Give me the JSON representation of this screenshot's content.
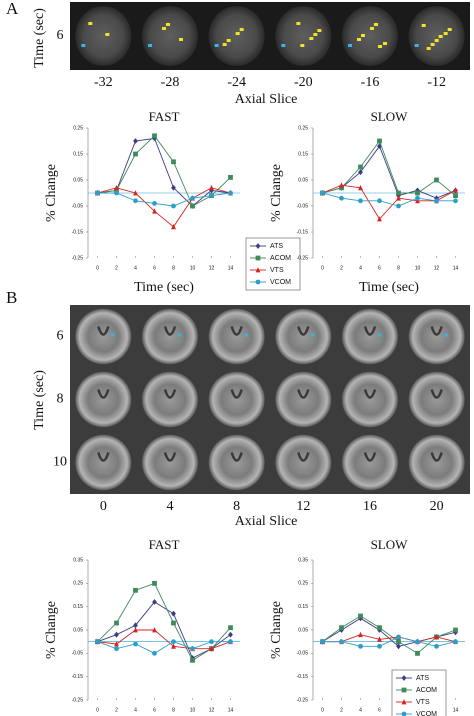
{
  "figure": {
    "panel_a": {
      "label": "A",
      "time_axis_label": "Time (sec)",
      "rows": [
        "6"
      ],
      "slices": [
        "-32",
        "-28",
        "-24",
        "-20",
        "-16",
        "-12"
      ],
      "slice_axis_label": "Axial Slice"
    },
    "panel_b": {
      "label": "B",
      "time_axis_label": "Time (sec)",
      "rows": [
        "6",
        "8",
        "10"
      ],
      "slices": [
        "0",
        "4",
        "8",
        "12",
        "16",
        "20"
      ],
      "slice_axis_label": "Axial Slice"
    }
  },
  "chart_data": [
    {
      "type": "line",
      "title": "FAST",
      "xlabel": "Time (sec)",
      "ylabel": "% Change",
      "x": [
        0,
        2,
        4,
        6,
        8,
        10,
        12,
        14
      ],
      "xlim": [
        -1,
        15
      ],
      "xticks": [
        0,
        2,
        4,
        6,
        8,
        10,
        12,
        14
      ],
      "ylim": [
        -0.25,
        0.25
      ],
      "yticks": [
        -0.25,
        -0.15,
        -0.05,
        0.05,
        0.15,
        0.25
      ],
      "legend": true,
      "series": [
        {
          "name": "ATS",
          "color": "#3d3a86",
          "marker": "diamond",
          "values": [
            0,
            0.01,
            0.2,
            0.21,
            0.02,
            -0.05,
            0.01,
            0
          ]
        },
        {
          "name": "ACOM",
          "color": "#3f8a5b",
          "marker": "square",
          "values": [
            0,
            0.01,
            0.15,
            0.22,
            0.12,
            -0.05,
            -0.01,
            0.06
          ]
        },
        {
          "name": "VTS",
          "color": "#d8231e",
          "marker": "triangle",
          "values": [
            0,
            0.02,
            0,
            -0.07,
            -0.13,
            -0.02,
            0.02,
            0
          ]
        },
        {
          "name": "VCOM",
          "color": "#2a9fc9",
          "marker": "circle",
          "values": [
            0,
            0,
            -0.03,
            -0.04,
            -0.05,
            -0.02,
            -0.01,
            0
          ]
        }
      ]
    },
    {
      "type": "line",
      "title": "SLOW",
      "xlabel": "Time (sec)",
      "ylabel": "% Change",
      "x": [
        0,
        2,
        4,
        6,
        8,
        10,
        12,
        14
      ],
      "xlim": [
        -1,
        15
      ],
      "xticks": [
        0,
        2,
        4,
        6,
        8,
        10,
        12,
        14
      ],
      "ylim": [
        -0.25,
        0.25
      ],
      "yticks": [
        -0.25,
        -0.15,
        -0.05,
        0.05,
        0.15,
        0.25
      ],
      "legend": false,
      "series": [
        {
          "name": "ATS",
          "color": "#3d3a86",
          "marker": "diamond",
          "values": [
            0,
            0.02,
            0.08,
            0.18,
            -0.01,
            0.01,
            -0.02,
            0.01
          ]
        },
        {
          "name": "ACOM",
          "color": "#3f8a5b",
          "marker": "square",
          "values": [
            0,
            0.02,
            0.1,
            0.2,
            0,
            0,
            0.05,
            -0.01
          ]
        },
        {
          "name": "VTS",
          "color": "#d8231e",
          "marker": "triangle",
          "values": [
            0,
            0.03,
            0.02,
            -0.1,
            -0.02,
            -0.03,
            -0.03,
            0.01
          ]
        },
        {
          "name": "VCOM",
          "color": "#2a9fc9",
          "marker": "circle",
          "values": [
            0,
            -0.02,
            -0.03,
            -0.03,
            -0.05,
            -0.02,
            -0.03,
            -0.03
          ]
        }
      ]
    },
    {
      "type": "line",
      "title": "FAST",
      "ylabel": "% Change",
      "x": [
        0,
        2,
        4,
        6,
        8,
        10,
        12,
        14
      ],
      "xlim": [
        -1,
        15
      ],
      "xticks": [
        0,
        2,
        4,
        6,
        8,
        10,
        12,
        14
      ],
      "ylim": [
        -0.25,
        0.35
      ],
      "yticks": [
        -0.25,
        -0.15,
        -0.05,
        0.05,
        0.15,
        0.25,
        0.35
      ],
      "legend": false,
      "series": [
        {
          "name": "ATS",
          "color": "#3d3a86",
          "marker": "diamond",
          "values": [
            0,
            0.03,
            0.07,
            0.17,
            0.12,
            -0.07,
            -0.03,
            0.03
          ]
        },
        {
          "name": "ACOM",
          "color": "#3f8a5b",
          "marker": "square",
          "values": [
            0,
            0.08,
            0.22,
            0.25,
            0.08,
            -0.08,
            -0.03,
            0.06
          ]
        },
        {
          "name": "VTS",
          "color": "#d8231e",
          "marker": "triangle",
          "values": [
            0,
            -0.01,
            0.05,
            0.05,
            -0.02,
            -0.03,
            -0.03,
            0
          ]
        },
        {
          "name": "VCOM",
          "color": "#2a9fc9",
          "marker": "circle",
          "values": [
            0,
            -0.03,
            -0.01,
            -0.05,
            0,
            -0.03,
            0,
            0
          ]
        }
      ]
    },
    {
      "type": "line",
      "title": "SLOW",
      "ylabel": "% Change",
      "x": [
        0,
        2,
        4,
        6,
        8,
        10,
        12,
        14
      ],
      "xlim": [
        -1,
        15
      ],
      "xticks": [
        0,
        2,
        4,
        6,
        8,
        10,
        12,
        14
      ],
      "ylim": [
        -0.25,
        0.35
      ],
      "yticks": [
        -0.25,
        -0.15,
        -0.05,
        0.05,
        0.15,
        0.25,
        0.35
      ],
      "legend": true,
      "series": [
        {
          "name": "ATS",
          "color": "#3d3a86",
          "marker": "diamond",
          "values": [
            0,
            0.05,
            0.1,
            0.05,
            -0.02,
            0,
            0.02,
            0.04
          ]
        },
        {
          "name": "ACOM",
          "color": "#3f8a5b",
          "marker": "square",
          "values": [
            0,
            0.06,
            0.11,
            0.06,
            0,
            -0.05,
            0.02,
            0.05
          ]
        },
        {
          "name": "VTS",
          "color": "#d8231e",
          "marker": "triangle",
          "values": [
            0,
            0,
            0.03,
            0.01,
            0.02,
            0,
            0.02,
            0
          ]
        },
        {
          "name": "VCOM",
          "color": "#2a9fc9",
          "marker": "circle",
          "values": [
            0,
            0,
            -0.02,
            -0.02,
            0.02,
            0,
            -0.02,
            0
          ]
        }
      ]
    }
  ]
}
